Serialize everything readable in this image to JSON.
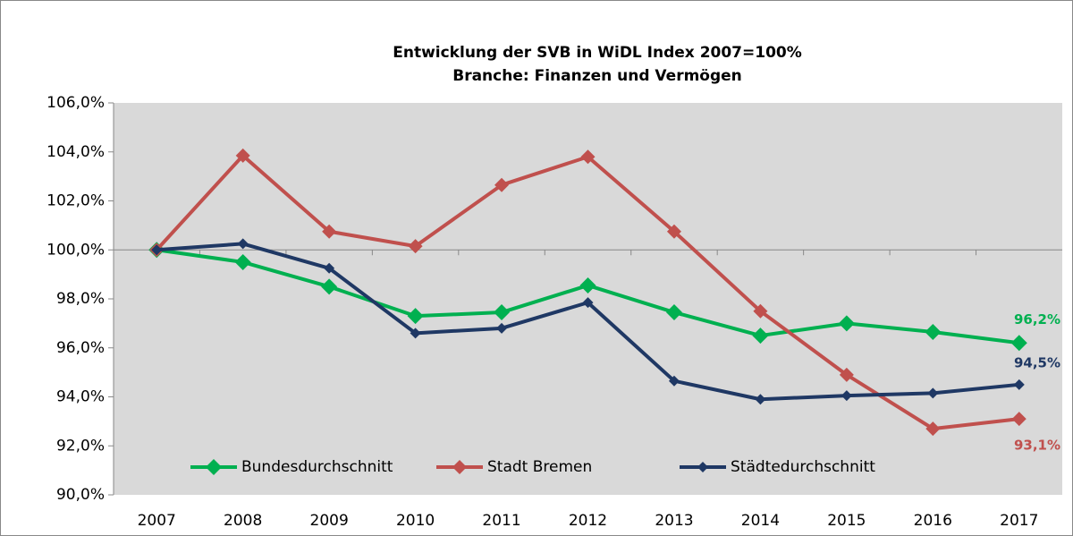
{
  "chart_data": {
    "type": "line",
    "title": "Entwicklung der SVB in WiDL Index 2007=100%",
    "subtitle": "Branche: Finanzen und Vermögen",
    "categories": [
      "2007",
      "2008",
      "2009",
      "2010",
      "2011",
      "2012",
      "2013",
      "2014",
      "2015",
      "2016",
      "2017"
    ],
    "series": [
      {
        "name": "Bundesdurchschnitt",
        "color": "#00b050",
        "values": [
          100,
          99.5,
          98.5,
          97.3,
          97.45,
          98.55,
          97.45,
          96.5,
          97.0,
          96.65,
          96.2
        ],
        "value_labels": [
          null,
          null,
          null,
          null,
          null,
          null,
          null,
          null,
          null,
          null,
          "96,2%"
        ]
      },
      {
        "name": "Stadt Bremen",
        "color": "#c0504d",
        "values": [
          100,
          103.85,
          100.75,
          100.15,
          102.65,
          103.8,
          100.75,
          97.5,
          94.9,
          92.7,
          93.1
        ],
        "value_labels": [
          null,
          null,
          null,
          null,
          null,
          null,
          null,
          null,
          null,
          null,
          "93,1%"
        ]
      },
      {
        "name": "Städtedurchschnitt",
        "color": "#1f3864",
        "values": [
          100,
          100.25,
          99.25,
          96.6,
          96.8,
          97.85,
          94.65,
          93.9,
          94.05,
          94.15,
          94.5
        ],
        "value_labels": [
          null,
          null,
          null,
          null,
          null,
          null,
          null,
          null,
          null,
          null,
          "94,5%"
        ]
      }
    ],
    "ylim": [
      90,
      106
    ],
    "yticks": [
      {
        "value": 90,
        "label": "90,0%"
      },
      {
        "value": 92,
        "label": "92,0%"
      },
      {
        "value": 94,
        "label": "94,0%"
      },
      {
        "value": 96,
        "label": "96,0%"
      },
      {
        "value": 98,
        "label": "98,0%"
      },
      {
        "value": 100,
        "label": "100,0%"
      },
      {
        "value": 102,
        "label": "102,0%"
      },
      {
        "value": 104,
        "label": "104,0%"
      },
      {
        "value": 106,
        "label": "106,0%"
      }
    ],
    "legend": "bottom",
    "grid": false
  }
}
